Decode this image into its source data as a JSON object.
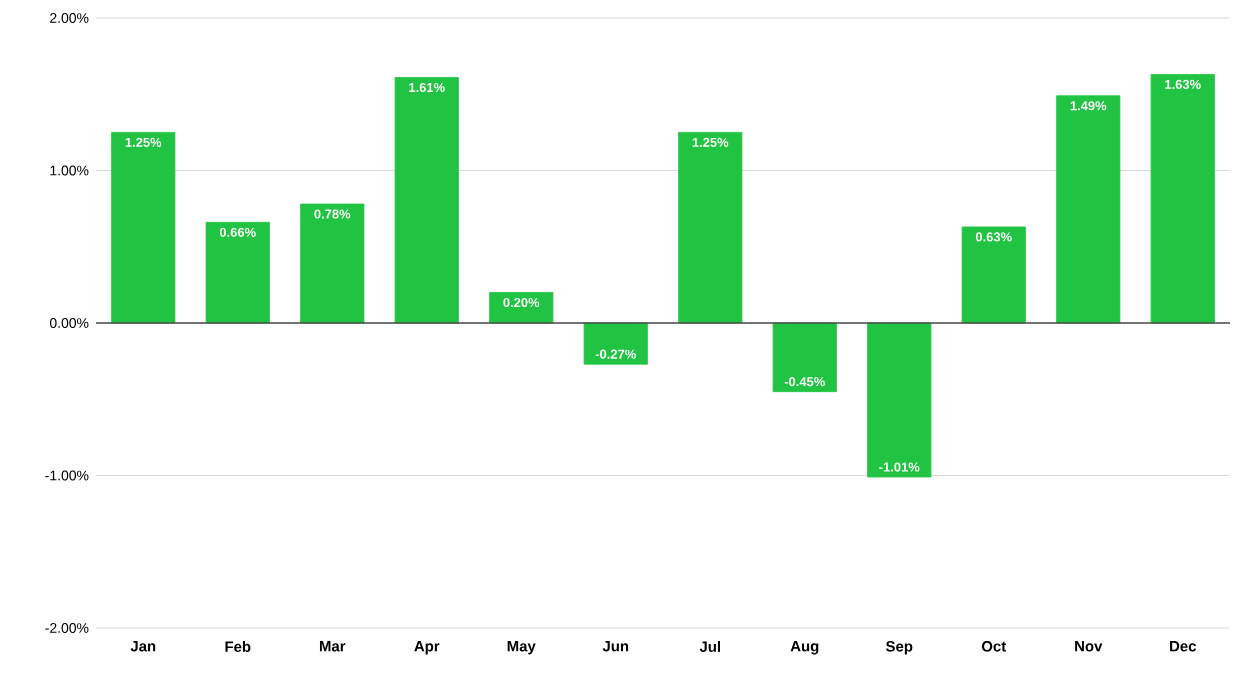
{
  "chart_data": {
    "type": "bar",
    "categories": [
      "Jan",
      "Feb",
      "Mar",
      "Apr",
      "May",
      "Jun",
      "Jul",
      "Aug",
      "Sep",
      "Oct",
      "Nov",
      "Dec"
    ],
    "values": [
      1.25,
      0.66,
      0.78,
      1.61,
      0.2,
      -0.27,
      1.25,
      -0.45,
      -1.01,
      0.63,
      1.49,
      1.63
    ],
    "value_labels": [
      "1.25%",
      "0.66%",
      "0.78%",
      "1.61%",
      "0.20%",
      "-0.27%",
      "1.25%",
      "-0.45%",
      "-1.01%",
      "0.63%",
      "1.49%",
      "1.63%"
    ],
    "color": "#21c442",
    "ylim": [
      -2,
      2
    ],
    "yticks": [
      {
        "value": -2,
        "label": "-2.00%"
      },
      {
        "value": -1,
        "label": "-1.00%"
      },
      {
        "value": 0,
        "label": "0.00%"
      },
      {
        "value": 1,
        "label": "1.00%"
      },
      {
        "value": 2,
        "label": "2.00%"
      }
    ],
    "grid": "y"
  }
}
